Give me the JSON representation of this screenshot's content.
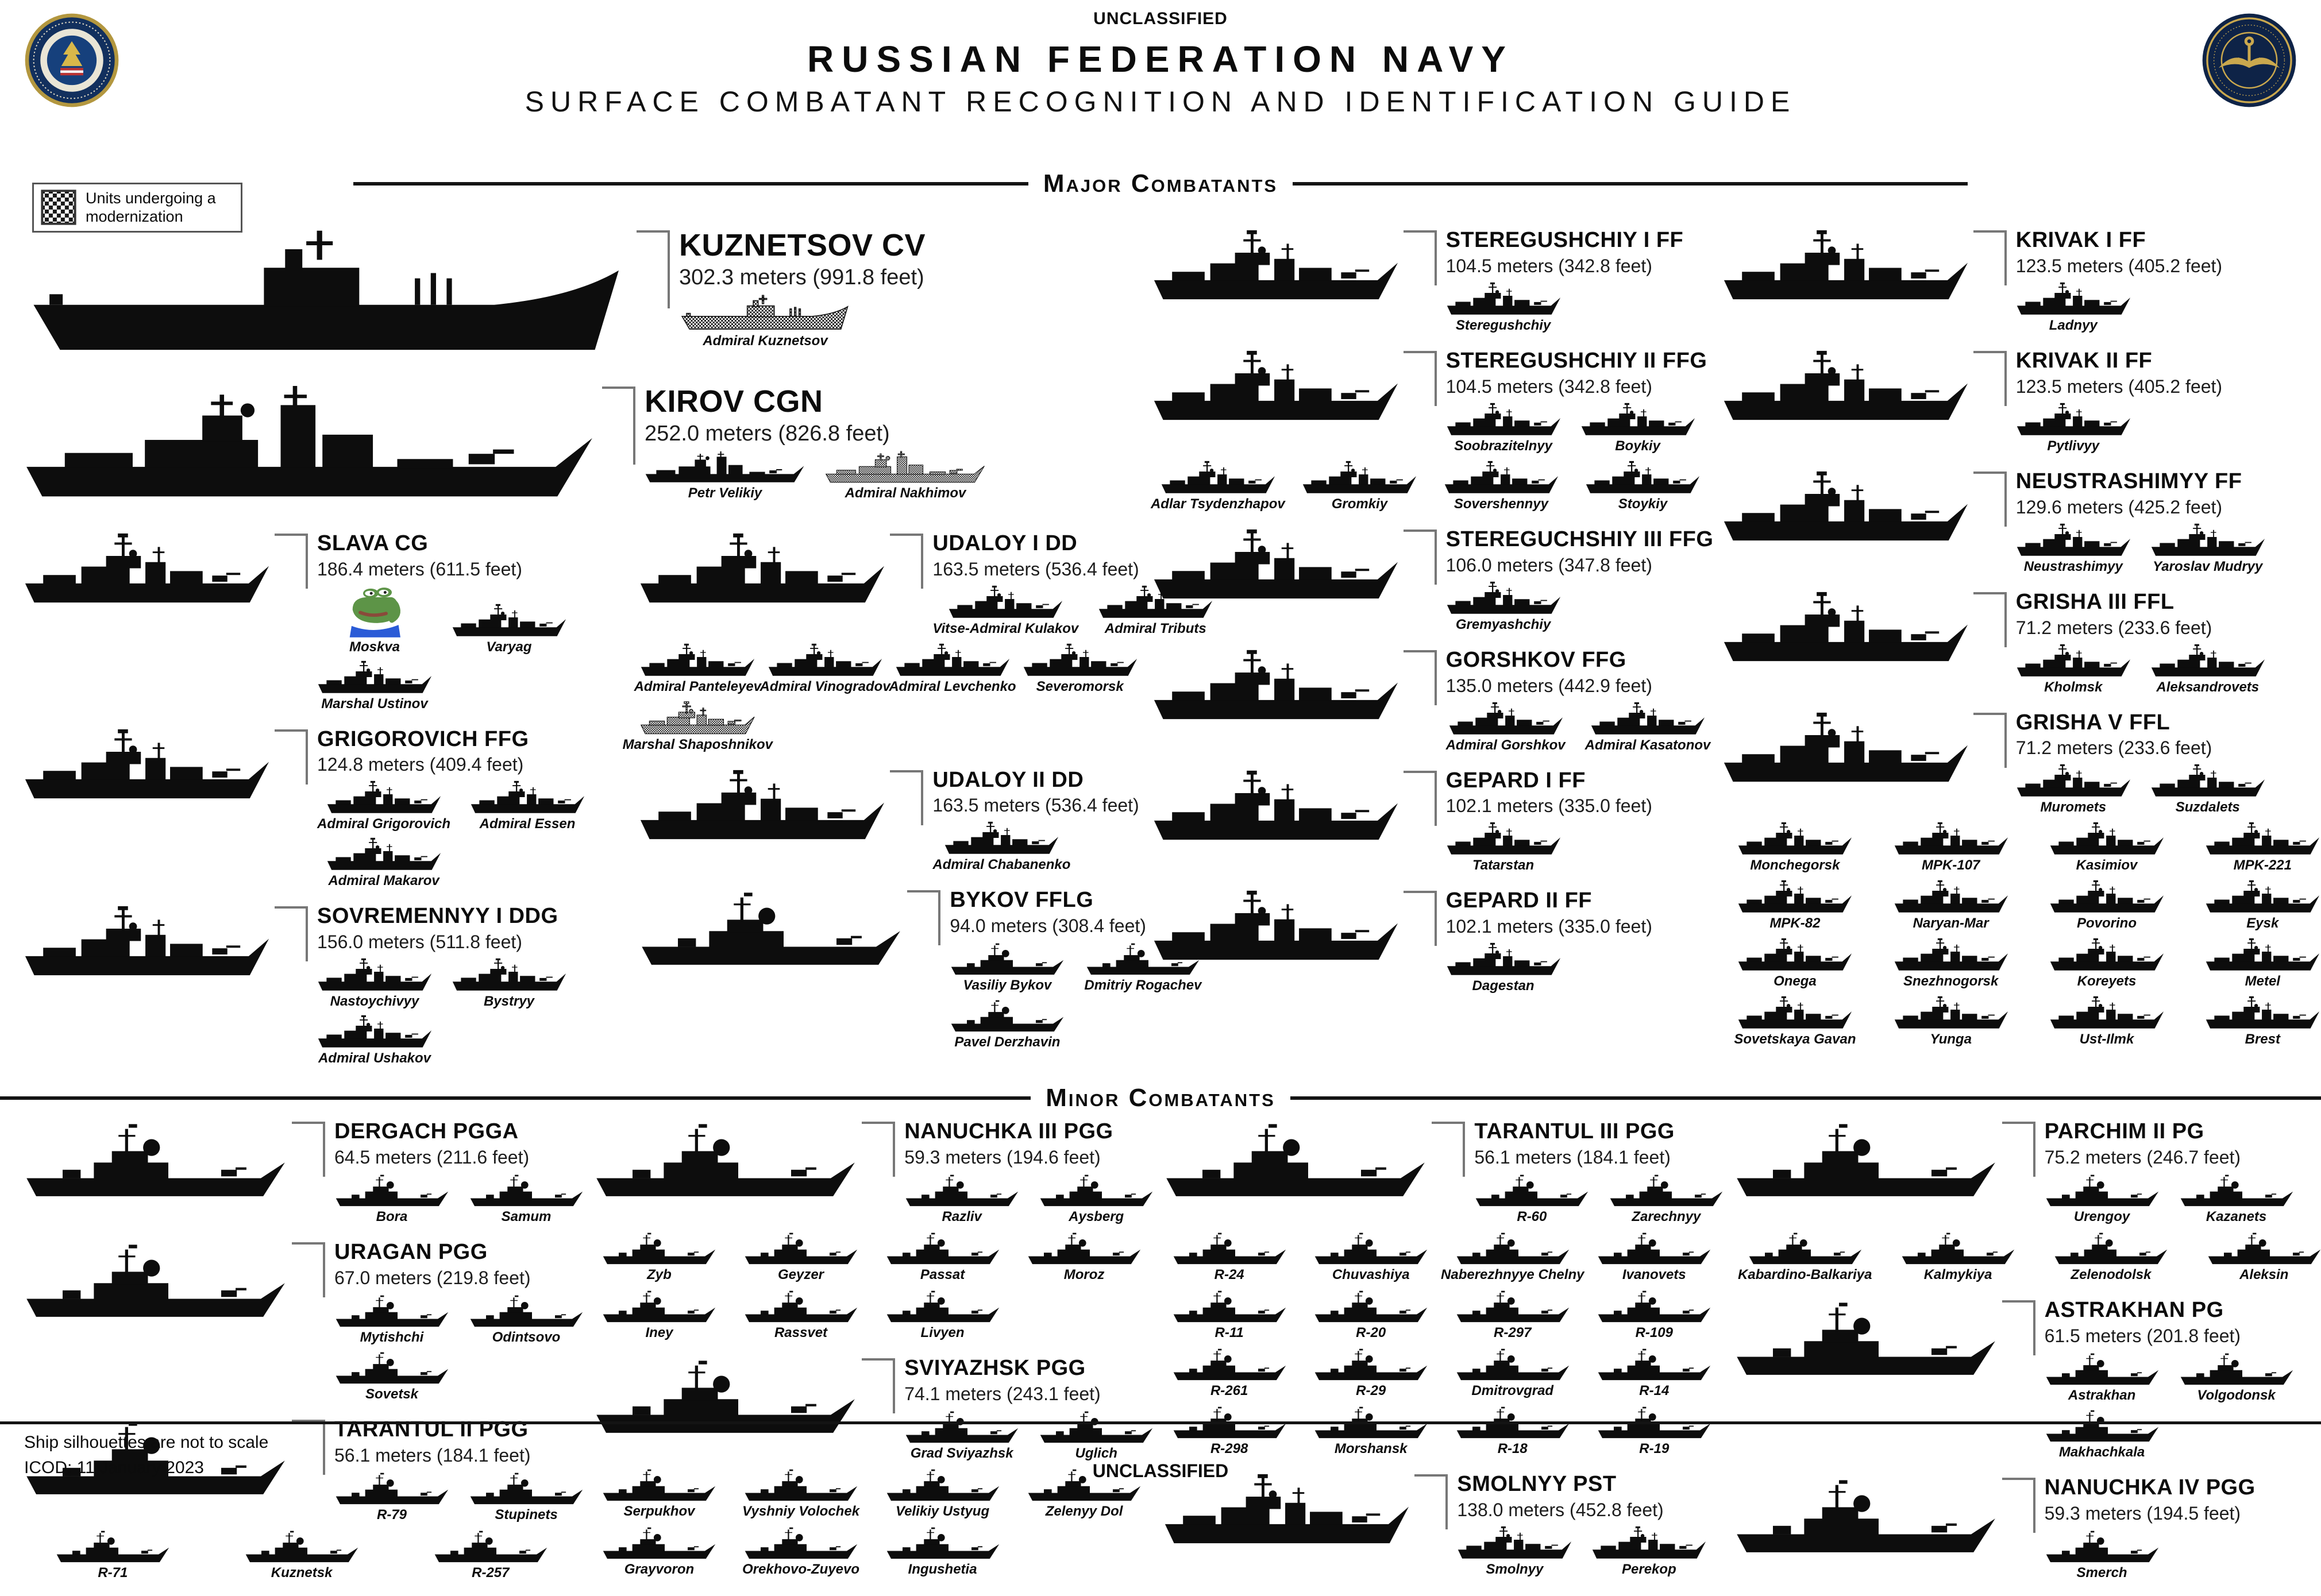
{
  "header": {
    "classification": "UNCLASSIFIED",
    "title": "RUSSIAN FEDERATION NAVY",
    "subtitle": "SURFACE COMBATANT RECOGNITION AND IDENTIFICATION GUIDE"
  },
  "legend": {
    "label": "Units undergoing a modernization"
  },
  "footer": {
    "note": "Ship silhouettes are not to scale",
    "icod": "ICOD: 11 January 2023",
    "classification": "UNCLASSIFIED"
  },
  "sections": {
    "major": {
      "heading": "Major Combatants",
      "top": [
        {
          "name": "KUZNETSOV CV",
          "length": "302.3 meters (991.8 feet)",
          "hero": "carrier",
          "ships": [
            {
              "n": "Admiral Kuznetsov",
              "mod": true,
              "shape": "carrier"
            }
          ]
        },
        {
          "name": "KIROV CGN",
          "length": "252.0 meters (826.8 feet)",
          "hero": "cruiser",
          "ships": [
            {
              "n": "Petr Velikiy",
              "shape": "cruiser"
            },
            {
              "n": "Admiral Nakhimov",
              "mod": true,
              "shape": "cruiser"
            }
          ]
        }
      ],
      "columns": [
        [
          {
            "name": "SLAVA CG",
            "length": "186.4 meters (611.5 feet)",
            "hero": "warship",
            "ships": [
              {
                "n": "Moskva",
                "shape": "frog"
              },
              {
                "n": "Varyag"
              },
              {
                "n": "Marshal Ustinov"
              }
            ]
          },
          {
            "name": "GRIGOROVICH FFG",
            "length": "124.8 meters (409.4 feet)",
            "hero": "warship",
            "ships": [
              {
                "n": "Admiral Grigorovich"
              },
              {
                "n": "Admiral Essen"
              },
              {
                "n": "Admiral Makarov"
              }
            ]
          },
          {
            "name": "SOVREMENNYY I DDG",
            "length": "156.0 meters (511.8 feet)",
            "hero": "warship",
            "ships": [
              {
                "n": "Nastoychivyy"
              },
              {
                "n": "Bystryy"
              },
              {
                "n": "Admiral Ushakov"
              }
            ]
          }
        ],
        [
          {
            "name": "UDALOY I DD",
            "length": "163.5 meters (536.4 feet)",
            "hero": "warship",
            "ships": [
              {
                "n": "Vitse-Admiral Kulakov"
              },
              {
                "n": "Admiral Tributs"
              },
              {
                "n": "Admiral Panteleyev"
              },
              {
                "n": "Admiral Vinogradov"
              },
              {
                "n": "Admiral Levchenko"
              },
              {
                "n": "Severomorsk"
              },
              {
                "n": "Marshal Shaposhnikov",
                "mod": true
              }
            ]
          },
          {
            "name": "UDALOY II DD",
            "length": "163.5 meters (536.4 feet)",
            "hero": "warship",
            "ships": [
              {
                "n": "Admiral Chabanenko"
              }
            ]
          },
          {
            "name": "BYKOV FFLG",
            "length": "94.0 meters (308.4 feet)",
            "hero": "boat",
            "ships": [
              {
                "n": "Vasiliy Bykov",
                "shape": "boat"
              },
              {
                "n": "Dmitriy Rogachev",
                "shape": "boat"
              },
              {
                "n": "Pavel Derzhavin",
                "shape": "boat"
              }
            ]
          }
        ],
        [
          {
            "name": "STEREGUSHCHIY I FF",
            "length": "104.5 meters (342.8 feet)",
            "hero": "warship",
            "ships": [
              {
                "n": "Steregushchiy"
              }
            ]
          },
          {
            "name": "STEREGUSHCHIY II FFG",
            "length": "104.5 meters (342.8 feet)",
            "hero": "warship",
            "ships": [
              {
                "n": "Soobrazitelnyy"
              },
              {
                "n": "Boykiy"
              },
              {
                "n": "Adlar Tsydenzhapov"
              },
              {
                "n": "Gromkiy"
              },
              {
                "n": "Sovershennyy"
              },
              {
                "n": "Stoykiy"
              }
            ]
          },
          {
            "name": "STEREGUCHSHIY III FFG",
            "length": "106.0 meters (347.8 feet)",
            "hero": "warship",
            "ships": [
              {
                "n": "Gremyashchiy"
              }
            ]
          },
          {
            "name": "GORSHKOV FFG",
            "length": "135.0 meters (442.9 feet)",
            "hero": "warship",
            "ships": [
              {
                "n": "Admiral Gorshkov"
              },
              {
                "n": "Admiral Kasatonov"
              }
            ]
          },
          {
            "name": "GEPARD I FF",
            "length": "102.1 meters (335.0 feet)",
            "hero": "warship",
            "ships": [
              {
                "n": "Tatarstan"
              }
            ]
          },
          {
            "name": "GEPARD II FF",
            "length": "102.1 meters (335.0 feet)",
            "hero": "warship",
            "ships": [
              {
                "n": "Dagestan"
              }
            ]
          }
        ],
        [
          {
            "name": "KRIVAK I FF",
            "length": "123.5 meters (405.2 feet)",
            "hero": "warship",
            "ships": [
              {
                "n": "Ladnyy"
              }
            ]
          },
          {
            "name": "KRIVAK II FF",
            "length": "123.5 meters (405.2 feet)",
            "hero": "warship",
            "ships": [
              {
                "n": "Pytlivyy"
              }
            ]
          },
          {
            "name": "NEUSTRASHIMYY FF",
            "length": "129.6 meters (425.2 feet)",
            "hero": "warship",
            "ships": [
              {
                "n": "Neustrashimyy"
              },
              {
                "n": "Yaroslav Mudryy"
              }
            ]
          },
          {
            "name": "GRISHA III FFL",
            "length": "71.2 meters (233.6 feet)",
            "hero": "warship",
            "ships": [
              {
                "n": "Kholmsk"
              },
              {
                "n": "Aleksandrovets"
              }
            ]
          },
          {
            "name": "GRISHA V FFL",
            "length": "71.2 meters (233.6 feet)",
            "hero": "warship",
            "ships": [
              {
                "n": "Muromets"
              },
              {
                "n": "Suzdalets"
              },
              {
                "n": "Monchegorsk"
              },
              {
                "n": "MPK-107"
              },
              {
                "n": "Kasimiov"
              },
              {
                "n": "MPK-221"
              },
              {
                "n": "MPK-82"
              },
              {
                "n": "Naryan-Mar"
              },
              {
                "n": "Povorino"
              },
              {
                "n": "Eysk"
              },
              {
                "n": "Onega"
              },
              {
                "n": "Snezhnogorsk"
              },
              {
                "n": "Koreyets"
              },
              {
                "n": "Metel"
              },
              {
                "n": "Sovetskaya Gavan"
              },
              {
                "n": "Yunga"
              },
              {
                "n": "Ust-Ilmk"
              },
              {
                "n": "Brest"
              }
            ]
          }
        ]
      ]
    },
    "minor": {
      "heading": "Minor Combatants",
      "columns": [
        [
          {
            "name": "DERGACH PGGA",
            "length": "64.5 meters (211.6 feet)",
            "hero": "boat",
            "ships": [
              {
                "n": "Bora",
                "shape": "boat"
              },
              {
                "n": "Samum",
                "shape": "boat"
              }
            ]
          },
          {
            "name": "URAGAN PGG",
            "length": "67.0 meters (219.8 feet)",
            "hero": "boat",
            "ships": [
              {
                "n": "Mytishchi",
                "shape": "boat"
              },
              {
                "n": "Odintsovo",
                "shape": "boat"
              },
              {
                "n": "Sovetsk",
                "shape": "boat"
              }
            ]
          },
          {
            "name": "TARANTUL II PGG",
            "length": "56.1 meters (184.1 feet)",
            "hero": "boat",
            "cols": 3,
            "ships": [
              {
                "n": "R-79",
                "shape": "boat"
              },
              {
                "n": "Stupinets",
                "shape": "boat"
              },
              {
                "n": "R-71",
                "shape": "boat"
              },
              {
                "n": "Kuznetsk",
                "shape": "boat"
              },
              {
                "n": "R-257",
                "shape": "boat"
              }
            ]
          }
        ],
        [
          {
            "name": "NANUCHKA III PGG",
            "length": "59.3 meters (194.6 feet)",
            "hero": "boat",
            "ships": [
              {
                "n": "Razliv",
                "shape": "boat"
              },
              {
                "n": "Aysberg",
                "shape": "boat"
              },
              {
                "n": "Zyb",
                "shape": "boat"
              },
              {
                "n": "Geyzer",
                "shape": "boat"
              },
              {
                "n": "Passat",
                "shape": "boat"
              },
              {
                "n": "Moroz",
                "shape": "boat"
              },
              {
                "n": "Iney",
                "shape": "boat"
              },
              {
                "n": "Rassvet",
                "shape": "boat"
              },
              {
                "n": "Livyen",
                "shape": "boat"
              }
            ]
          },
          {
            "name": "SVIYAZHSK PGG",
            "length": "74.1 meters (243.1 feet)",
            "hero": "boat",
            "ships": [
              {
                "n": "Grad Sviyazhsk",
                "shape": "boat"
              },
              {
                "n": "Uglich",
                "shape": "boat"
              },
              {
                "n": "Serpukhov",
                "shape": "boat"
              },
              {
                "n": "Vyshniy Volochek",
                "shape": "boat"
              },
              {
                "n": "Velikiy Ustyug",
                "shape": "boat"
              },
              {
                "n": "Zelenyy Dol",
                "shape": "boat"
              },
              {
                "n": "Grayvoron",
                "shape": "boat"
              },
              {
                "n": "Orekhovo-Zuyevo",
                "shape": "boat"
              },
              {
                "n": "Ingushetia",
                "shape": "boat"
              }
            ]
          }
        ],
        [
          {
            "name": "TARANTUL III PGG",
            "length": "56.1 meters (184.1 feet)",
            "hero": "boat",
            "ships": [
              {
                "n": "R-60",
                "shape": "boat"
              },
              {
                "n": "Zarechnyy",
                "shape": "boat"
              },
              {
                "n": "R-24",
                "shape": "boat"
              },
              {
                "n": "Chuvashiya",
                "shape": "boat"
              },
              {
                "n": "Naberezhnyye Chelny",
                "shape": "boat"
              },
              {
                "n": "Ivanovets",
                "shape": "boat"
              },
              {
                "n": "R-11",
                "shape": "boat"
              },
              {
                "n": "R-20",
                "shape": "boat"
              },
              {
                "n": "R-297",
                "shape": "boat"
              },
              {
                "n": "R-109",
                "shape": "boat"
              },
              {
                "n": "R-261",
                "shape": "boat"
              },
              {
                "n": "R-29",
                "shape": "boat"
              },
              {
                "n": "Dmitrovgrad",
                "shape": "boat"
              },
              {
                "n": "R-14",
                "shape": "boat"
              },
              {
                "n": "R-298",
                "shape": "boat"
              },
              {
                "n": "Morshansk",
                "shape": "boat"
              },
              {
                "n": "R-18",
                "shape": "boat"
              },
              {
                "n": "R-19",
                "shape": "boat"
              }
            ]
          },
          {
            "name": "SMOLNYY PST",
            "length": "138.0 meters (452.8 feet)",
            "hero": "warship",
            "ships": [
              {
                "n": "Smolnyy"
              },
              {
                "n": "Perekop"
              }
            ]
          }
        ],
        [
          {
            "name": "PARCHIM II PG",
            "length": "75.2 meters (246.7 feet)",
            "hero": "boat",
            "ships": [
              {
                "n": "Urengoy",
                "shape": "boat"
              },
              {
                "n": "Kazanets",
                "shape": "boat"
              },
              {
                "n": "Kabardino-Balkariya",
                "shape": "boat"
              },
              {
                "n": "Kalmykiya",
                "shape": "boat"
              },
              {
                "n": "Zelenodolsk",
                "shape": "boat"
              },
              {
                "n": "Aleksin",
                "shape": "boat"
              }
            ]
          },
          {
            "name": "ASTRAKHAN PG",
            "length": "61.5 meters (201.8 feet)",
            "hero": "boat",
            "ships": [
              {
                "n": "Astrakhan",
                "shape": "boat"
              },
              {
                "n": "Volgodonsk",
                "shape": "boat"
              },
              {
                "n": "Makhachkala",
                "shape": "boat"
              }
            ]
          },
          {
            "name": "NANUCHKA IV PGG",
            "length": "59.3 meters (194.5 feet)",
            "hero": "boat",
            "ships": [
              {
                "n": "Smerch",
                "shape": "boat"
              }
            ]
          }
        ]
      ]
    }
  }
}
